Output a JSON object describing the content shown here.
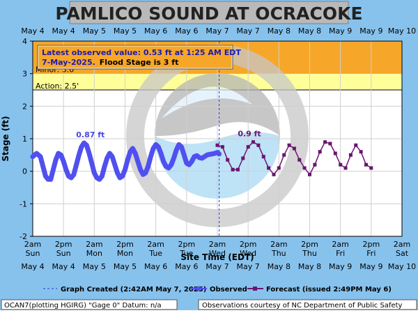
{
  "title": "PAMLICO SOUND AT OCRACOKE",
  "top_dates": [
    "May 4",
    "May 4",
    "May 5",
    "May 5",
    "May 6",
    "May 6",
    "May 7",
    "May 7",
    "May 8",
    "May 8",
    "May 9",
    "May 9",
    "May 10"
  ],
  "bottom_dates": [
    "May 4",
    "May 4",
    "May 5",
    "May 5",
    "May 6",
    "May 6",
    "May 7",
    "May 7",
    "May 8",
    "May 8",
    "May 9",
    "May 9",
    "May 10"
  ],
  "time_labels": [
    "2am",
    "2pm",
    "2am",
    "2pm",
    "2am",
    "2pm",
    "2am",
    "2pm",
    "2am",
    "2pm",
    "2am",
    "2pm",
    "2am"
  ],
  "day_labels": [
    "Sun",
    "Sun",
    "Mon",
    "Mon",
    "Tue",
    "Tue",
    "Wed",
    "Wed",
    "Thu",
    "Thu",
    "Fri",
    "Fri",
    "Sat"
  ],
  "info_box": {
    "line1": "Latest observed value: 0.53 ft at 1:25 AM EDT",
    "line2_a": "7-May-2025.",
    "line2_b": "Flood Stage is 3 ft"
  },
  "colors": {
    "background": "#87c2ed",
    "title_bar": "#b9b9b9",
    "plot_bg": "#ffffff",
    "minor_band": "#f6a72a",
    "action_band": "#ffff99",
    "observed": "#5050f0",
    "forecast": "#6a1570",
    "grid": "#cfcfcf"
  },
  "chart_data": {
    "type": "line",
    "title": "PAMLICO SOUND AT OCRACOKE",
    "xlabel": "Site Time (EDT)",
    "ylabel": "Stage (ft)",
    "ylim": [
      -2,
      4
    ],
    "y_ticks": [
      -2,
      -1,
      0,
      1,
      2,
      3,
      4
    ],
    "x_range_hours": [
      0,
      144
    ],
    "x_tick_step_hours": 12,
    "x_origin": "May 4 2am",
    "grid": true,
    "thresholds": [
      {
        "label": "Minor: 3.0'",
        "value": 3.0,
        "upper": 4.0
      },
      {
        "label": "Action: 2.5'",
        "value": 2.5,
        "upper": 3.0
      }
    ],
    "graph_created_hour": 72.7,
    "annotations": [
      {
        "text": "0.87 ft",
        "x": 22.5,
        "y": 0.87,
        "series": "Observed"
      },
      {
        "text": "0.9 ft",
        "x": 84.5,
        "y": 0.9,
        "series": "Forecast"
      }
    ],
    "series": [
      {
        "name": "Observed",
        "x": [
          0,
          1.5,
          3,
          4,
          5,
          6,
          7,
          8,
          9,
          10,
          11,
          12,
          13,
          14,
          15,
          16,
          17,
          18,
          19,
          20,
          21,
          22,
          23,
          24,
          25,
          26,
          27,
          28,
          29,
          30,
          31,
          32,
          33,
          34,
          35,
          36,
          37,
          38,
          39,
          40,
          41,
          42,
          43,
          44,
          45,
          46,
          47,
          48,
          49,
          50,
          51,
          52,
          53,
          54,
          55,
          56,
          57,
          58,
          59,
          60,
          61,
          62,
          63,
          64,
          65,
          66,
          67,
          68,
          69,
          70,
          71,
          72,
          72.7
        ],
        "y": [
          0.45,
          0.55,
          0.45,
          0.15,
          -0.15,
          -0.25,
          -0.25,
          0.05,
          0.35,
          0.55,
          0.5,
          0.3,
          0.05,
          -0.15,
          -0.2,
          -0.1,
          0.2,
          0.5,
          0.75,
          0.87,
          0.8,
          0.55,
          0.25,
          -0.05,
          -0.2,
          -0.25,
          -0.15,
          0.15,
          0.4,
          0.55,
          0.45,
          0.2,
          -0.05,
          -0.2,
          -0.15,
          0.05,
          0.35,
          0.6,
          0.7,
          0.55,
          0.3,
          0.05,
          -0.1,
          -0.05,
          0.15,
          0.45,
          0.7,
          0.82,
          0.75,
          0.55,
          0.3,
          0.15,
          0.1,
          0.2,
          0.4,
          0.65,
          0.82,
          0.75,
          0.5,
          0.25,
          0.2,
          0.3,
          0.45,
          0.48,
          0.42,
          0.4,
          0.45,
          0.5,
          0.52,
          0.53,
          0.55,
          0.58,
          0.53
        ]
      },
      {
        "name": "Forecast",
        "x": [
          72,
          74,
          76,
          78,
          80,
          82,
          84,
          86,
          88,
          90,
          92,
          94,
          96,
          98,
          100,
          102,
          104,
          106,
          108,
          110,
          112,
          114,
          116,
          118,
          120,
          122,
          124,
          126,
          128,
          130,
          132
        ],
        "y": [
          0.8,
          0.75,
          0.35,
          0.05,
          0.05,
          0.4,
          0.75,
          0.9,
          0.8,
          0.45,
          0.1,
          -0.1,
          0.1,
          0.5,
          0.8,
          0.7,
          0.35,
          0.1,
          -0.1,
          0.2,
          0.6,
          0.9,
          0.85,
          0.55,
          0.2,
          0.1,
          0.5,
          0.8,
          0.6,
          0.2,
          0.1
        ]
      }
    ]
  },
  "legend": {
    "created": "Graph Created (2:42AM May 7, 2025)",
    "observed": "Observed",
    "forecast": "Forecast (issued 2:49PM May 6)"
  },
  "footer": {
    "left": "OCAN7(plotting HGIRG) \"Gage 0\" Datum: n/a",
    "right": "Observations courtesy of NC Department of Public Safety"
  }
}
